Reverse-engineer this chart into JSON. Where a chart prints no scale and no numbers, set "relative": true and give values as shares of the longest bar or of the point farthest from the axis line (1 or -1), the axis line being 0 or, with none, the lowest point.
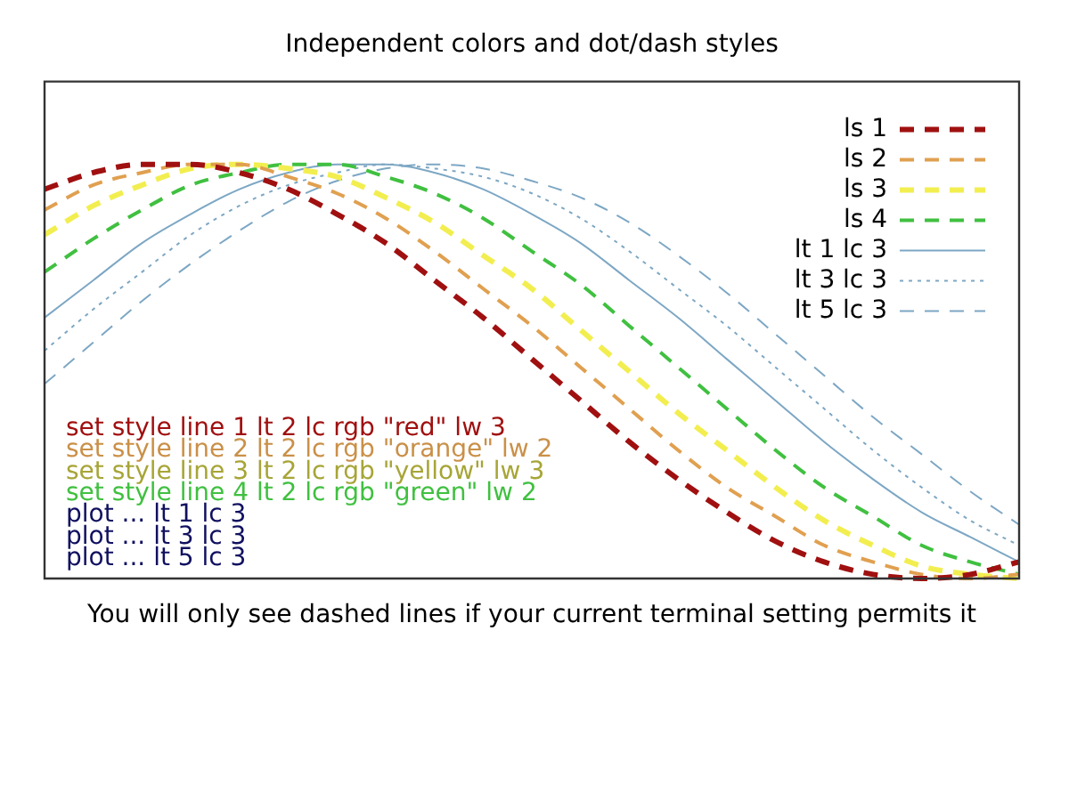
{
  "chart_data": {
    "type": "line",
    "title": "Independent colors and dot/dash styles",
    "xlabel": "You will only see dashed lines if your current terminal setting permits it",
    "relative": true,
    "legend": "top right",
    "marker": "none",
    "categories": [
      null,
      null,
      null,
      null,
      null,
      null,
      null,
      null,
      null,
      null,
      null,
      null,
      null,
      null,
      null,
      null,
      null,
      null,
      null,
      null,
      null
    ],
    "series": [
      {
        "name": "ls 1",
        "color": "#a01010",
        "line_style": "dashed",
        "values": [
          0.94,
          0.98,
          1.0,
          1.0,
          0.98,
          0.94,
          0.88,
          0.81,
          0.72,
          0.63,
          0.53,
          0.43,
          0.33,
          0.24,
          0.16,
          0.09,
          0.04,
          0.01,
          0.0,
          0.01,
          0.04
        ]
      },
      {
        "name": "ls 2",
        "color": "#e0a050",
        "line_style": "dashed",
        "values": [
          0.89,
          0.95,
          0.98,
          1.0,
          1.0,
          0.97,
          0.93,
          0.87,
          0.79,
          0.7,
          0.61,
          0.51,
          0.41,
          0.31,
          0.22,
          0.15,
          0.08,
          0.04,
          0.01,
          0.0,
          0.01
        ]
      },
      {
        "name": "ls 3",
        "color": "#f2ee50",
        "line_style": "dashed",
        "values": [
          0.83,
          0.9,
          0.95,
          0.99,
          1.0,
          0.99,
          0.97,
          0.92,
          0.86,
          0.78,
          0.7,
          0.6,
          0.5,
          0.4,
          0.31,
          0.22,
          0.14,
          0.08,
          0.03,
          0.01,
          0.0
        ]
      },
      {
        "name": "ls 4",
        "color": "#40c040",
        "line_style": "dashed",
        "values": [
          0.74,
          0.82,
          0.89,
          0.95,
          0.98,
          1.0,
          1.0,
          0.97,
          0.93,
          0.87,
          0.79,
          0.71,
          0.61,
          0.51,
          0.41,
          0.31,
          0.22,
          0.15,
          0.08,
          0.04,
          0.01
        ]
      },
      {
        "name": "lt 1 lc 3",
        "color": "#7da7c4",
        "line_style": "solid",
        "values": [
          0.63,
          0.72,
          0.81,
          0.88,
          0.94,
          0.98,
          1.0,
          1.0,
          0.98,
          0.94,
          0.88,
          0.81,
          0.72,
          0.63,
          0.53,
          0.43,
          0.33,
          0.24,
          0.16,
          0.1,
          0.04
        ]
      },
      {
        "name": "lt 3 lc 3",
        "color": "#7da7c4",
        "line_style": "dotted",
        "values": [
          0.55,
          0.65,
          0.74,
          0.83,
          0.9,
          0.95,
          0.98,
          1.0,
          0.99,
          0.97,
          0.93,
          0.87,
          0.79,
          0.7,
          0.61,
          0.51,
          0.41,
          0.31,
          0.22,
          0.14,
          0.08
        ]
      },
      {
        "name": "lt 5 lc 3",
        "color": "#7da7c4",
        "line_style": "dashed",
        "values": [
          0.47,
          0.57,
          0.67,
          0.76,
          0.84,
          0.91,
          0.96,
          0.99,
          1.0,
          0.99,
          0.96,
          0.92,
          0.86,
          0.78,
          0.69,
          0.59,
          0.49,
          0.39,
          0.3,
          0.21,
          0.13
        ]
      }
    ],
    "annotations": [
      "set style line 1 lt 2 lc rgb \"red\" lw 3",
      "set style line 2 lt 2 lc rgb \"orange\" lw 2",
      "set style line 3 lt 2 lc rgb \"yellow\" lw 3",
      "set style line 4 lt 2 lc rgb \"green\" lw 2",
      "plot ... lt 1 lc 3",
      "plot ... lt 3 lc 3",
      "plot ... lt 5 lc 3"
    ]
  }
}
